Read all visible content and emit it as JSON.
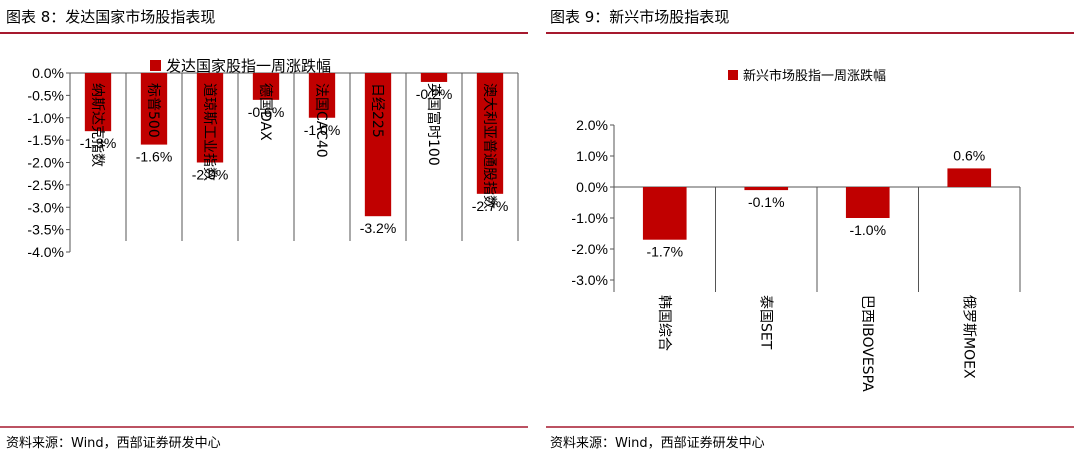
{
  "fig1": {
    "caption": "图表 8：发达国家市场股指表现",
    "source": "资料来源：Wind，西部证券研发中心"
  },
  "fig2": {
    "caption": "图表 9：新兴市场股指表现",
    "source": "资料来源：Wind，西部证券研发中心"
  },
  "colors": {
    "bar": "#C00000",
    "rule": "#A6192E"
  },
  "chart_data": [
    {
      "type": "bar",
      "title": "",
      "legend": "发达国家股指一周涨跌幅",
      "legend_position": "top",
      "categories": [
        "纳斯达克指数",
        "标普500",
        "道琼斯工业指数",
        "德国DAX",
        "法国CAC40",
        "日经225",
        "英国富时100",
        "澳大利亚普通股指数"
      ],
      "values": [
        -1.3,
        -1.6,
        -2.0,
        -0.6,
        -1.0,
        -3.2,
        -0.2,
        -2.7
      ],
      "data_labels": [
        "-1.3%",
        "-1.6%",
        "-2.0%",
        "-0.6%",
        "-1.0%",
        "-3.2%",
        "-0.2%",
        "-2.7%"
      ],
      "ylim": [
        -4.0,
        0.0
      ],
      "yticks": [
        "0.0%",
        "-0.5%",
        "-1.0%",
        "-1.5%",
        "-2.0%",
        "-2.5%",
        "-3.0%",
        "-3.5%",
        "-4.0%"
      ],
      "xlabel": "",
      "ylabel": "",
      "grid": false
    },
    {
      "type": "bar",
      "title": "",
      "legend": "新兴市场股指一周涨跌幅",
      "legend_position": "top",
      "categories": [
        "韩国综合",
        "泰国SET",
        "巴西IBOVESPA",
        "俄罗斯MOEX"
      ],
      "values": [
        -1.7,
        -0.1,
        -1.0,
        0.6
      ],
      "data_labels": [
        "-1.7%",
        "-0.1%",
        "-1.0%",
        "0.6%"
      ],
      "ylim": [
        -3.0,
        2.0
      ],
      "yticks": [
        "2.0%",
        "1.0%",
        "0.0%",
        "-1.0%",
        "-2.0%",
        "-3.0%"
      ],
      "xlabel": "",
      "ylabel": "",
      "grid": false
    }
  ]
}
